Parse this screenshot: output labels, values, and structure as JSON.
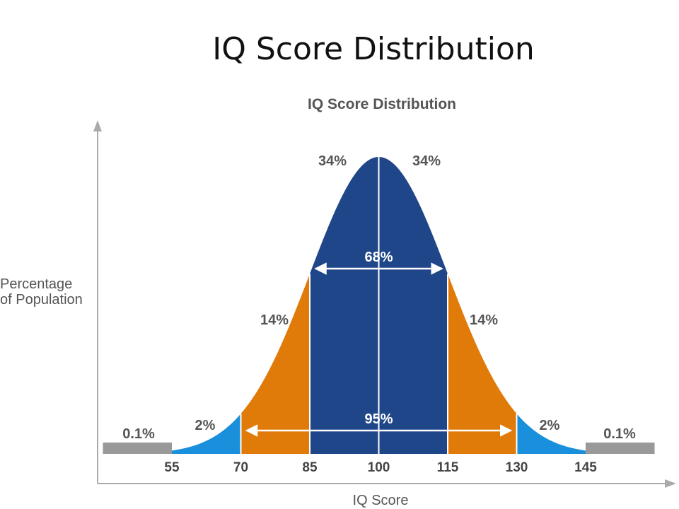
{
  "slide": {
    "title": "IQ Score Distribution"
  },
  "chart_data": {
    "type": "area",
    "title": "IQ Score Distribution",
    "xlabel": "IQ Score",
    "ylabel_lines": [
      "Percentage",
      "of Population"
    ],
    "x_ticks": [
      55,
      70,
      85,
      100,
      115,
      130,
      145
    ],
    "mean": 100,
    "sd": 15,
    "segments": [
      {
        "from": 40,
        "to": 55,
        "label": "0.1%",
        "color": "#999999"
      },
      {
        "from": 55,
        "to": 70,
        "label": "2%",
        "color": "#1a8fdc"
      },
      {
        "from": 70,
        "to": 85,
        "label": "14%",
        "color": "#e07b0a"
      },
      {
        "from": 85,
        "to": 100,
        "label": "34%",
        "color": "#1f4688"
      },
      {
        "from": 100,
        "to": 115,
        "label": "34%",
        "color": "#1f4688"
      },
      {
        "from": 115,
        "to": 130,
        "label": "14%",
        "color": "#e07b0a"
      },
      {
        "from": 130,
        "to": 145,
        "label": "2%",
        "color": "#1a8fdc"
      },
      {
        "from": 145,
        "to": 160,
        "label": "0.1%",
        "color": "#999999"
      }
    ],
    "spans": [
      {
        "from": 85,
        "to": 115,
        "label": "68%"
      },
      {
        "from": 70,
        "to": 130,
        "label": "95%"
      }
    ]
  }
}
